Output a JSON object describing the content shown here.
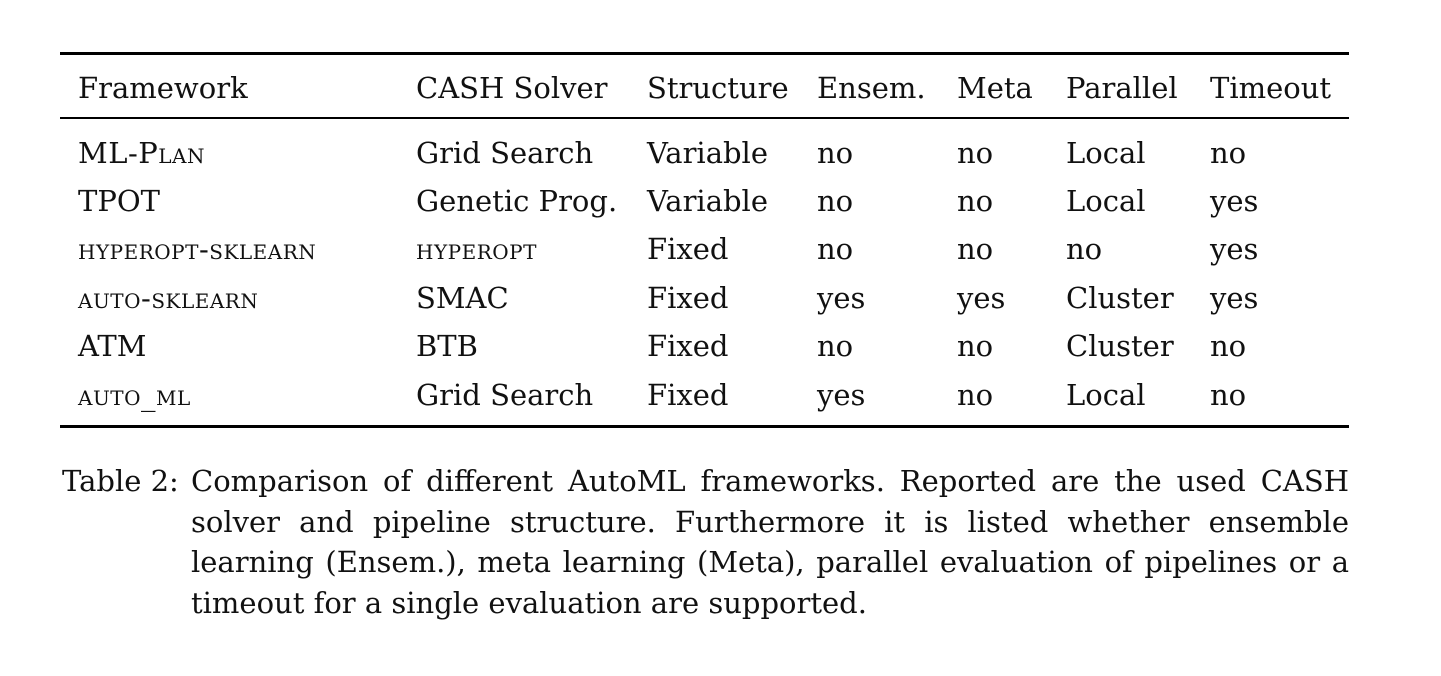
{
  "table": {
    "columns": [
      "Framework",
      "CASH Solver",
      "Structure",
      "Ensem.",
      "Meta",
      "Parallel",
      "Timeout"
    ],
    "rows": [
      [
        "ML-Plan",
        "Grid Search",
        "Variable",
        "no",
        "no",
        "Local",
        "no"
      ],
      [
        "TPOT",
        "Genetic Prog.",
        "Variable",
        "no",
        "no",
        "Local",
        "yes"
      ],
      [
        "hyperopt-sklearn",
        "hyperopt",
        "Fixed",
        "no",
        "no",
        "no",
        "yes"
      ],
      [
        "auto-sklearn",
        "SMAC",
        "Fixed",
        "yes",
        "yes",
        "Cluster",
        "yes"
      ],
      [
        "ATM",
        "BTB",
        "Fixed",
        "no",
        "no",
        "Cluster",
        "no"
      ],
      [
        "auto_ml",
        "Grid Search",
        "Fixed",
        "yes",
        "no",
        "Local",
        "no"
      ]
    ]
  },
  "caption": {
    "label": "Table 2:",
    "text": "Comparison of different AutoML frameworks. Reported are the used CASH solver and pipeline structure. Furthermore it is listed whether ensemble learning (Ensem.), meta learning (Meta), parallel evaluation of pipelines or a timeout for a single evaluation are supported."
  }
}
